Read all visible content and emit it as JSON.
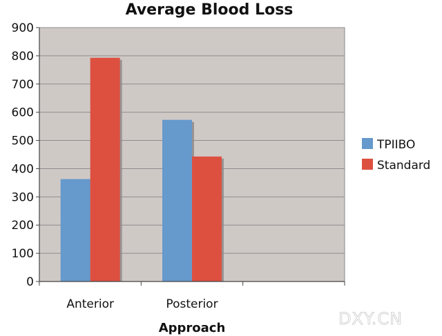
{
  "chart_data": {
    "type": "bar",
    "title": "Average Blood Loss",
    "xlabel": "Approach",
    "ylabel": "",
    "categories": [
      "Anterior",
      "Posterior",
      ""
    ],
    "series": [
      {
        "name": "TPIIBO",
        "values": [
          363,
          573,
          null
        ],
        "color": "#6699cc"
      },
      {
        "name": "Standard",
        "values": [
          793,
          443,
          null
        ],
        "color": "#dd5040"
      }
    ],
    "ylim": [
      0,
      900
    ],
    "yticks": [
      0,
      100,
      200,
      300,
      400,
      500,
      600,
      700,
      800,
      900
    ],
    "grid": true,
    "legend_position": "right",
    "plot_background": "#cfc9c6"
  },
  "watermark": "DXY.CN"
}
